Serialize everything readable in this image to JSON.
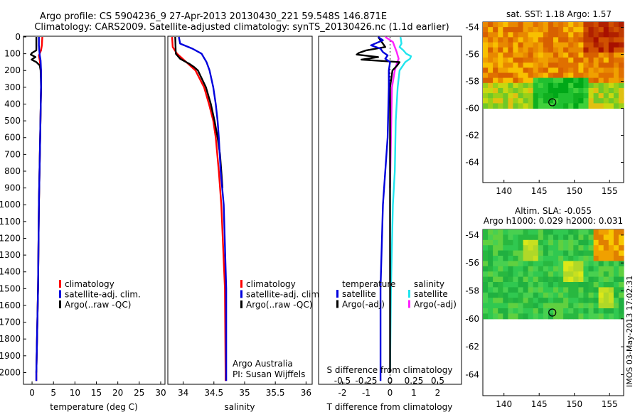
{
  "header": {
    "line1": "Argo profile: CS 5904236_9 27-Apr-2013 20130430_221 59.548S 146.871E",
    "line2": "Climatology: CARS2009. Satellite-adjusted climatology: synTS_20130426.nc (1.1d earlier)"
  },
  "side_label": "IMOS 03-May-2013 17:02:31",
  "colors": {
    "climatology": "#ff0000",
    "satellite": "#0000dd",
    "argo": "#000000",
    "satellite_s": "#22e5ee",
    "argo_s": "#ff22ff"
  },
  "chart_data": [
    {
      "type": "line",
      "xlabel": "temperature (deg C)",
      "ylabel": "",
      "xlim": [
        -2,
        31
      ],
      "ylim": [
        2070,
        0
      ],
      "xticks": [
        "0",
        "5",
        "10",
        "15",
        "20",
        "25",
        "30"
      ],
      "yticks": [
        "0",
        "100",
        "200",
        "300",
        "400",
        "500",
        "600",
        "700",
        "800",
        "900",
        "1000",
        "1100",
        "1200",
        "1300",
        "1400",
        "1500",
        "1600",
        "1700",
        "1800",
        "1900",
        "2000"
      ],
      "legend": [
        "climatology",
        "satellite-adj. clim.",
        "Argo(..raw -QC)"
      ],
      "series": [
        {
          "name": "climatology",
          "depth": [
            0,
            50,
            80,
            110,
            140,
            200,
            300,
            600,
            1000,
            1500,
            2000,
            2050
          ],
          "values": [
            2.4,
            2.3,
            2.1,
            1.6,
            1.8,
            2.1,
            2.1,
            1.9,
            1.6,
            1.4,
            1.0,
            1.0
          ]
        },
        {
          "name": "satellite-adj. clim.",
          "depth": [
            0,
            50,
            80,
            110,
            140,
            200,
            300,
            600,
            1000,
            1500,
            2000,
            2050
          ],
          "values": [
            1.6,
            1.6,
            1.7,
            1.8,
            2.0,
            2.1,
            2.1,
            1.9,
            1.6,
            1.4,
            1.0,
            1.0
          ]
        },
        {
          "name": "Argo(..raw -QC)",
          "depth": [
            0,
            80,
            95,
            105,
            120,
            135,
            150,
            170,
            200,
            300,
            600,
            1000,
            1500,
            2000
          ],
          "values": [
            1.0,
            1.0,
            0.0,
            -0.3,
            0.8,
            -0.1,
            1.0,
            1.8,
            2.0,
            2.1,
            1.9,
            1.6,
            1.4,
            1.0
          ]
        }
      ]
    },
    {
      "type": "line",
      "xlabel": "salinity",
      "ylabel": "",
      "xlim": [
        33.75,
        36.1
      ],
      "ylim": [
        2070,
        0
      ],
      "xticks": [
        "34",
        "34.5",
        "35",
        "35.5",
        "36"
      ],
      "legend": [
        "climatology",
        "satellite-adj. clim.",
        "Argo(..raw -QC)"
      ],
      "annotation": [
        "Argo Australia",
        "PI: Susan Wijffels"
      ],
      "series": [
        {
          "name": "climatology",
          "depth": [
            0,
            60,
            100,
            150,
            200,
            300,
            400,
            500,
            600,
            800,
            1000,
            1500,
            2000,
            2050
          ],
          "values": [
            33.82,
            33.83,
            33.9,
            34.05,
            34.2,
            34.34,
            34.42,
            34.49,
            34.53,
            34.58,
            34.62,
            34.68,
            34.69,
            34.69
          ]
        },
        {
          "name": "satellite-adj. clim.",
          "depth": [
            0,
            40,
            70,
            100,
            150,
            200,
            300,
            400,
            500,
            600,
            800,
            1000,
            1500,
            2000,
            2050
          ],
          "values": [
            33.93,
            33.95,
            34.15,
            34.3,
            34.38,
            34.43,
            34.49,
            34.53,
            34.56,
            34.58,
            34.61,
            34.66,
            34.7,
            34.7,
            34.7
          ]
        },
        {
          "name": "Argo(..raw -QC)",
          "depth": [
            0,
            100,
            130,
            160,
            180,
            200,
            300,
            400,
            500,
            600,
            700,
            800,
            900
          ],
          "values": [
            33.87,
            33.88,
            33.95,
            34.1,
            34.18,
            34.24,
            34.37,
            34.45,
            34.51,
            34.56,
            34.6,
            34.62,
            34.64
          ]
        }
      ]
    },
    {
      "type": "line",
      "xlabel": "T difference from climatology",
      "xlabel2": "S difference from climatology",
      "xlim": [
        -3,
        3
      ],
      "xticks": [
        "-2",
        "-1",
        "0",
        "1",
        "2"
      ],
      "xticks2": [
        "-0.5",
        "-0.25",
        "0",
        "0.25",
        "0.5"
      ],
      "ylim": [
        2070,
        0
      ],
      "legend_title_t": "temperature",
      "legend_title_s": "salinity",
      "legend": [
        "satellite",
        "Argo(-adj)",
        "satellite",
        "Argo(-adj)"
      ],
      "series": [
        {
          "name": "T satellite",
          "depth": [
            0,
            20,
            50,
            70,
            90,
            110,
            130,
            150,
            200,
            300,
            600,
            1000,
            1500,
            2050
          ],
          "values": [
            -0.5,
            -0.3,
            -0.8,
            -0.4,
            -0.3,
            -0.1,
            -0.2,
            0.0,
            -0.05,
            -0.05,
            -0.1,
            -0.3,
            -0.4,
            -0.4
          ]
        },
        {
          "name": "T Argo(-adj)",
          "depth": [
            0,
            60,
            80,
            95,
            105,
            120,
            135,
            150,
            170,
            200,
            300,
            600,
            1000,
            1500,
            2000
          ],
          "values": [
            -0.5,
            -0.2,
            -1.0,
            -1.3,
            -1.4,
            -0.5,
            -1.2,
            0.4,
            0.3,
            0.1,
            0.0,
            0.0,
            0.0,
            0.0,
            0.0
          ]
        },
        {
          "name": "S satellite",
          "depth": [
            0,
            40,
            60,
            80,
            100,
            115,
            130,
            150,
            200,
            300,
            500,
            800,
            1000,
            1500,
            2000
          ],
          "values": [
            0.11,
            0.12,
            0.1,
            0.14,
            0.17,
            0.22,
            0.21,
            0.16,
            0.1,
            0.08,
            0.06,
            0.05,
            0.03,
            0.01,
            0.0
          ]
        },
        {
          "name": "S Argo(-adj)",
          "depth": [
            0,
            30,
            60,
            90,
            110,
            130,
            160,
            200,
            300,
            600,
            900
          ],
          "values": [
            -0.05,
            0.03,
            0.05,
            0.07,
            0.08,
            0.09,
            0.07,
            0.05,
            0.02,
            0.01,
            0.0
          ]
        }
      ]
    },
    {
      "type": "heatmap",
      "title": "sat. SST: 1.18  Argo: 1.57",
      "xlim": [
        137,
        157
      ],
      "ylim": [
        -65.5,
        -53.6
      ],
      "xticks": [
        "140",
        "145",
        "150",
        "155"
      ],
      "yticks": [
        "-54",
        "-56",
        "-58",
        "-60",
        "-62",
        "-64"
      ],
      "marker": {
        "lon": 146.87,
        "lat": -59.55
      }
    },
    {
      "type": "heatmap",
      "title_line1": "Altim. SLA: -0.055",
      "title_line2": "Argo h1000: 0.029 h2000: 0.031",
      "xlim": [
        137,
        157
      ],
      "ylim": [
        -65.5,
        -53.6
      ],
      "xticks": [
        "140",
        "145",
        "150",
        "155"
      ],
      "yticks": [
        "-54",
        "-56",
        "-58",
        "-60",
        "-62",
        "-64"
      ],
      "marker": {
        "lon": 146.87,
        "lat": -59.55
      }
    }
  ]
}
